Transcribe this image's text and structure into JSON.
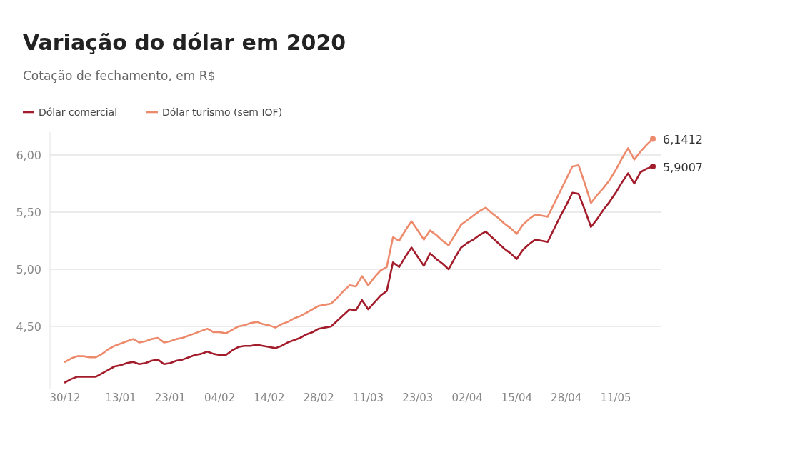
{
  "chart_data": {
    "type": "line",
    "title": "Variação do dólar em 2020",
    "subtitle": "Cotação de fechamento, em R$",
    "categories": [
      "30/12",
      null,
      null,
      null,
      null,
      null,
      null,
      null,
      null,
      "13/01",
      null,
      null,
      null,
      null,
      null,
      null,
      null,
      "23/01",
      null,
      null,
      null,
      null,
      null,
      null,
      null,
      "04/02",
      null,
      null,
      null,
      null,
      null,
      null,
      null,
      "14/02",
      null,
      null,
      null,
      null,
      null,
      null,
      null,
      "28/02",
      null,
      null,
      null,
      null,
      null,
      null,
      null,
      "11/03",
      null,
      null,
      null,
      null,
      null,
      null,
      null,
      "23/03",
      null,
      null,
      null,
      null,
      null,
      null,
      null,
      "02/04",
      null,
      null,
      null,
      null,
      null,
      null,
      null,
      "15/04",
      null,
      null,
      null,
      null,
      null,
      null,
      null,
      "28/04",
      null,
      null,
      null,
      null,
      null,
      null,
      null,
      "11/05",
      null,
      null,
      null,
      null,
      null,
      null
    ],
    "ylim": [
      3.95,
      6.2
    ],
    "yticks": [
      {
        "value": 4.5,
        "label": "4,50"
      },
      {
        "value": 5,
        "label": "5,00"
      },
      {
        "value": 5.5,
        "label": "5,50"
      },
      {
        "value": 6,
        "label": "6,00"
      }
    ],
    "grid": "y",
    "legend": "top left",
    "marker": "none",
    "line_style": "solid",
    "series": [
      {
        "name": "Dólar comercial",
        "color": "#a31c2b",
        "values": [
          4.01,
          4.04,
          4.06,
          4.06,
          4.06,
          4.06,
          4.09,
          4.12,
          4.15,
          4.16,
          4.18,
          4.19,
          4.17,
          4.18,
          4.2,
          4.21,
          4.17,
          4.18,
          4.2,
          4.21,
          4.23,
          4.25,
          4.26,
          4.28,
          4.26,
          4.25,
          4.25,
          4.29,
          4.32,
          4.33,
          4.33,
          4.34,
          4.33,
          4.32,
          4.31,
          4.33,
          4.36,
          4.38,
          4.4,
          4.43,
          4.45,
          4.48,
          4.49,
          4.5,
          4.55,
          4.6,
          4.65,
          4.64,
          4.73,
          4.65,
          4.71,
          4.77,
          4.81,
          5.06,
          5.02,
          5.11,
          5.19,
          5.11,
          5.03,
          5.14,
          5.09,
          5.05,
          5.0,
          5.1,
          5.19,
          5.23,
          5.26,
          5.3,
          5.33,
          5.28,
          5.23,
          5.18,
          5.14,
          5.09,
          5.17,
          5.22,
          5.26,
          5.25,
          5.24,
          5.35,
          5.46,
          5.56,
          5.67,
          5.66,
          5.52,
          5.37,
          5.44,
          5.52,
          5.59,
          5.67,
          5.76,
          5.84,
          5.75,
          5.85,
          5.88,
          5.9007
        ],
        "value_labels": [
          null,
          null,
          null,
          null,
          null,
          null,
          null,
          null,
          null,
          null,
          null,
          null,
          null,
          null,
          null,
          null,
          null,
          null,
          null,
          null,
          null,
          null,
          null,
          null,
          null,
          null,
          null,
          null,
          null,
          null,
          null,
          null,
          null,
          null,
          null,
          null,
          null,
          null,
          null,
          null,
          null,
          null,
          null,
          null,
          null,
          null,
          null,
          null,
          null,
          null,
          null,
          null,
          null,
          null,
          null,
          null,
          null,
          null,
          null,
          null,
          null,
          null,
          null,
          null,
          null,
          null,
          null,
          null,
          null,
          null,
          null,
          null,
          null,
          null,
          null,
          null,
          null,
          null,
          null,
          null,
          null,
          null,
          null,
          null,
          null,
          null,
          null,
          null,
          null,
          null,
          null,
          null,
          null,
          null,
          null,
          "5,9007"
        ]
      },
      {
        "name": "Dólar turismo (sem IOF)",
        "color": "#ee8a6c",
        "values": [
          4.19,
          4.22,
          4.24,
          4.24,
          4.23,
          4.23,
          4.26,
          4.3,
          4.33,
          4.35,
          4.37,
          4.39,
          4.36,
          4.37,
          4.39,
          4.4,
          4.36,
          4.37,
          4.39,
          4.4,
          4.42,
          4.44,
          4.46,
          4.48,
          4.45,
          4.45,
          4.44,
          4.47,
          4.5,
          4.51,
          4.53,
          4.54,
          4.52,
          4.51,
          4.49,
          4.52,
          4.54,
          4.57,
          4.59,
          4.62,
          4.65,
          4.68,
          4.69,
          4.7,
          4.75,
          4.81,
          4.86,
          4.85,
          4.94,
          4.86,
          4.93,
          4.99,
          5.02,
          5.28,
          5.25,
          5.34,
          5.42,
          5.34,
          5.26,
          5.34,
          5.3,
          5.25,
          5.21,
          5.3,
          5.39,
          5.43,
          5.47,
          5.51,
          5.54,
          5.49,
          5.45,
          5.4,
          5.36,
          5.31,
          5.39,
          5.44,
          5.48,
          5.47,
          5.46,
          5.57,
          5.68,
          5.79,
          5.9,
          5.91,
          5.75,
          5.58,
          5.65,
          5.71,
          5.78,
          5.87,
          5.97,
          6.06,
          5.96,
          6.03,
          6.09,
          6.1412
        ],
        "value_labels": [
          null,
          null,
          null,
          null,
          null,
          null,
          null,
          null,
          null,
          null,
          null,
          null,
          null,
          null,
          null,
          null,
          null,
          null,
          null,
          null,
          null,
          null,
          null,
          null,
          null,
          null,
          null,
          null,
          null,
          null,
          null,
          null,
          null,
          null,
          null,
          null,
          null,
          null,
          null,
          null,
          null,
          null,
          null,
          null,
          null,
          null,
          null,
          null,
          null,
          null,
          null,
          null,
          null,
          null,
          null,
          null,
          null,
          null,
          null,
          null,
          null,
          null,
          null,
          null,
          null,
          null,
          null,
          null,
          null,
          null,
          null,
          null,
          null,
          null,
          null,
          null,
          null,
          null,
          null,
          null,
          null,
          null,
          null,
          null,
          null,
          null,
          null,
          null,
          null,
          null,
          null,
          null,
          null,
          null,
          null,
          "6,1412"
        ]
      }
    ]
  }
}
